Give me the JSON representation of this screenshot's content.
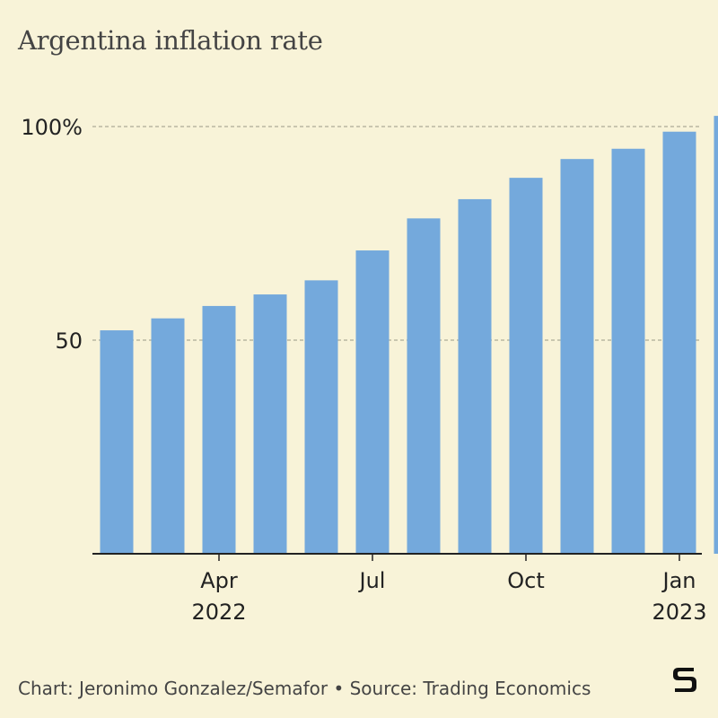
{
  "chart_data": {
    "type": "bar",
    "title": "Argentina inflation rate",
    "categories": [
      "2022-02",
      "2022-03",
      "2022-04",
      "2022-05",
      "2022-06",
      "2022-07",
      "2022-08",
      "2022-09",
      "2022-10",
      "2022-11",
      "2022-12",
      "2023-01",
      "2023-02"
    ],
    "values": [
      52.3,
      55.1,
      58.0,
      60.7,
      64.0,
      71.0,
      78.5,
      83.0,
      88.0,
      92.4,
      94.8,
      98.8,
      102.5
    ],
    "ylim": [
      0,
      100
    ],
    "y_ticks": [
      {
        "value": 50,
        "label": "50"
      },
      {
        "value": 100,
        "label": "100%"
      }
    ],
    "x_ticks": [
      {
        "index": 2,
        "label": "Apr",
        "sublabel": "2022"
      },
      {
        "index": 5,
        "label": "Jul",
        "sublabel": ""
      },
      {
        "index": 8,
        "label": "Oct",
        "sublabel": ""
      },
      {
        "index": 11,
        "label": "Jan",
        "sublabel": "2023"
      }
    ],
    "grid": true,
    "bar_color": "#74a9dc",
    "grid_color": "#9a9a86",
    "axis_color": "#222222"
  },
  "footer": {
    "credit": "Chart: Jeronimo Gonzalez/Semafor • Source: Trading Economics"
  },
  "logo": {
    "letter": "S"
  }
}
